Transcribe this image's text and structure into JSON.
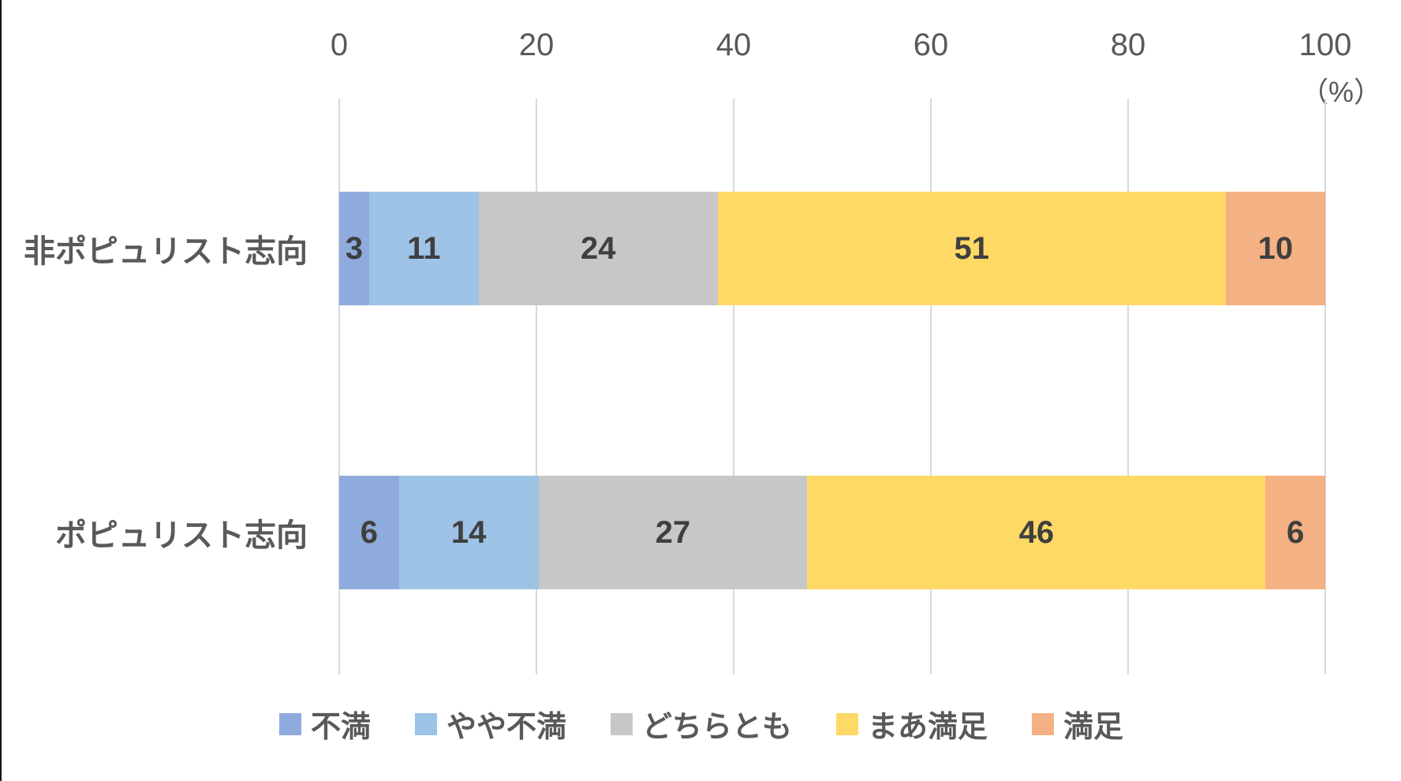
{
  "chart_data": {
    "type": "bar",
    "orientation": "horizontal",
    "stacked": true,
    "title": "",
    "unit_label": "（%）",
    "categories": [
      "非ポピュリスト志向",
      "ポピュリスト志向"
    ],
    "series": [
      {
        "name": "不満",
        "color": "#8FAADC",
        "values": [
          3,
          6
        ]
      },
      {
        "name": "やや不満",
        "color": "#9DC3E6",
        "values": [
          11,
          14
        ]
      },
      {
        "name": "どちらとも",
        "color": "#C7C7C7",
        "values": [
          24,
          27
        ]
      },
      {
        "name": "まあ満足",
        "color": "#FFD966",
        "values": [
          51,
          46
        ]
      },
      {
        "name": "満足",
        "color": "#F4B183",
        "values": [
          10,
          6
        ]
      }
    ],
    "x_axis": {
      "position": "top",
      "range": [
        0,
        100
      ],
      "ticks": [
        0,
        20,
        40,
        60,
        80,
        100
      ]
    },
    "grid": true,
    "gridline_color": "#D9D9D9",
    "legend_position": "bottom",
    "axis_text_color": "#595959",
    "data_label_color": "#3f3f3f",
    "background_color": "#ffffff"
  }
}
